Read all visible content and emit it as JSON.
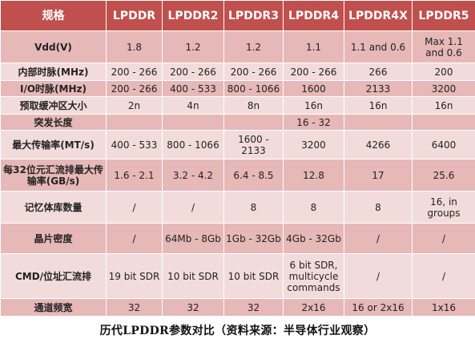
{
  "table": {
    "headers": [
      "规格",
      "LPDDR",
      "LPDDR2",
      "LPDDR3",
      "LPDDR4",
      "LPDDR4X",
      "LPDDR5"
    ],
    "rows": [
      [
        "Vdd(V)",
        "1.8",
        "1.2",
        "1.2",
        "1.1",
        "1.1 and 0.6",
        "Max 1.1 and 0.6"
      ],
      [
        "内部时脉(MHz)",
        "200 - 266",
        "200 - 266",
        "200 - 266",
        "200 - 266",
        "266",
        "200"
      ],
      [
        "I/O时脉(MHz)",
        "200 - 266",
        "400 - 533",
        "800 - 1066",
        "1600",
        "2133",
        "3200"
      ],
      [
        "预取缓冲区大小",
        "2n",
        "4n",
        "8n",
        "16n",
        "16n",
        "16n"
      ],
      [
        "突发长度",
        "",
        "",
        "",
        "16 - 32",
        "",
        ""
      ],
      [
        "最大传输率(MT/s)",
        "400 - 533",
        "800 - 1066",
        "1600 - 2133",
        "3200",
        "4266",
        "6400"
      ],
      [
        "每32位元汇流排最大传输率(GB/s)",
        "1.6 - 2.1",
        "3.2 - 4.2",
        "6.4 - 8.5",
        "12.8",
        "17",
        "25.6"
      ],
      [
        "记忆体库数量",
        "/",
        "/",
        "8",
        "8",
        "8",
        "16, in groups"
      ],
      [
        "晶片密度",
        "/",
        "64Mb - 8Gb",
        "1Gb - 32Gb",
        "4Gb - 32Gb",
        "/",
        "/"
      ],
      [
        "CMD/位址汇流排",
        "19 bit SDR",
        "10 bit SDR",
        "10 bit SDR",
        "6 bit SDR, multicycle commands",
        "/",
        "/"
      ],
      [
        "通道频宽",
        "32",
        "32",
        "32",
        "2x16",
        "16 or 2x16",
        "1x16"
      ]
    ]
  },
  "caption": "历代LPDDR参数对比（资料来源：半导体行业观察）"
}
